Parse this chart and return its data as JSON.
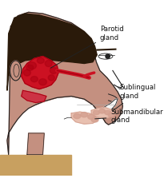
{
  "title": "",
  "background_color": "#ffffff",
  "figure_width": 2.1,
  "figure_height": 2.33,
  "dpi": 100,
  "labels": {
    "parotid": "Parotid\ngland",
    "sublingual": "Sublingual\ngland",
    "submandibular": "Submandibular\ngland"
  },
  "skin_color": "#c49080",
  "skin_shadow": "#b07868",
  "hair_color": "#2a1a0a",
  "gland_red": "#cc1122",
  "gland_red_dark": "#aa0011",
  "gland_pink": "#d4a090",
  "gland_light": "#e8c0b0",
  "line_color": "#222222",
  "text_color": "#111111",
  "font_size": 6.2,
  "white_area": "#f5f5f5"
}
